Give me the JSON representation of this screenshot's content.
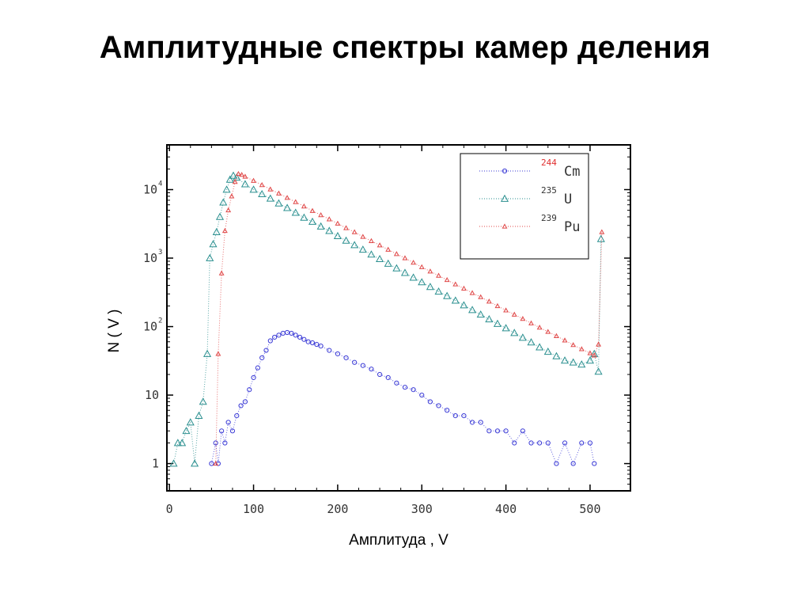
{
  "title": "Амплитудные спектры камер деления",
  "chart_data": {
    "type": "scatter",
    "title": "Амплитудные спектры камер деления",
    "xlabel": "Амплитуда  , V",
    "ylabel": "N ( V )",
    "xlim": [
      -3,
      548
    ],
    "ylim": [
      0.4,
      45000
    ],
    "yscale": "log",
    "grid": false,
    "legend_position": "top-right",
    "x_ticks": [
      0,
      100,
      200,
      300,
      400,
      500
    ],
    "x_tick_labels": [
      "0",
      "100",
      "200",
      "300",
      "400",
      "500"
    ],
    "y_ticks": [
      {
        "value": 1,
        "base": "1",
        "exp": ""
      },
      {
        "value": 10,
        "base": "10",
        "exp": ""
      },
      {
        "value": 100,
        "base": "10",
        "exp": "2"
      },
      {
        "value": 1000,
        "base": "10",
        "exp": "3"
      },
      {
        "value": 10000,
        "base": "10",
        "exp": "4"
      }
    ],
    "series": [
      {
        "name": "Cm",
        "isotope_mass": "244",
        "marker": "circle",
        "color": "#3b3bd6",
        "label_color": "#e03030",
        "line": "dotted",
        "x": [
          50,
          55,
          58,
          62,
          66,
          70,
          75,
          80,
          85,
          90,
          95,
          100,
          105,
          110,
          115,
          120,
          125,
          130,
          135,
          140,
          145,
          150,
          155,
          160,
          165,
          170,
          175,
          180,
          190,
          200,
          210,
          220,
          230,
          240,
          250,
          260,
          270,
          280,
          290,
          300,
          310,
          320,
          330,
          340,
          350,
          360,
          370,
          380,
          390,
          400,
          410,
          420,
          430,
          440,
          450,
          460,
          470,
          480,
          490,
          500,
          505
        ],
        "y": [
          1,
          2,
          1,
          3,
          2,
          4,
          3,
          5,
          7,
          8,
          12,
          18,
          25,
          35,
          45,
          62,
          70,
          75,
          80,
          82,
          80,
          75,
          70,
          65,
          60,
          58,
          55,
          52,
          45,
          40,
          35,
          30,
          27,
          24,
          20,
          18,
          15,
          13,
          12,
          10,
          8,
          7,
          6,
          5,
          5,
          4,
          4,
          3,
          3,
          3,
          2,
          3,
          2,
          2,
          2,
          1,
          2,
          1,
          2,
          2,
          1
        ]
      },
      {
        "name": "U",
        "isotope_mass": "235",
        "marker": "triangle",
        "color": "#2a8f8f",
        "label_color": "#333333",
        "line": "dotted",
        "x": [
          5,
          10,
          15,
          20,
          25,
          30,
          35,
          40,
          45,
          48,
          52,
          56,
          60,
          64,
          68,
          72,
          76,
          80,
          90,
          100,
          110,
          120,
          130,
          140,
          150,
          160,
          170,
          180,
          190,
          200,
          210,
          220,
          230,
          240,
          250,
          260,
          270,
          280,
          290,
          300,
          310,
          320,
          330,
          340,
          350,
          360,
          370,
          380,
          390,
          400,
          410,
          420,
          430,
          440,
          450,
          460,
          470,
          480,
          490,
          500,
          505,
          510,
          513
        ],
        "y": [
          1,
          2,
          2,
          3,
          4,
          1,
          5,
          8,
          40,
          1000,
          1600,
          2400,
          4000,
          6500,
          10000,
          14000,
          16000,
          15000,
          12000,
          10000,
          8600,
          7400,
          6300,
          5400,
          4600,
          3900,
          3400,
          2900,
          2500,
          2100,
          1800,
          1550,
          1330,
          1130,
          970,
          830,
          710,
          610,
          520,
          445,
          380,
          325,
          280,
          240,
          205,
          175,
          150,
          128,
          110,
          95,
          81,
          69,
          59,
          50,
          43,
          37,
          32,
          30,
          28,
          32,
          40,
          22,
          1900
        ]
      },
      {
        "name": "Pu",
        "isotope_mass": "239",
        "marker": "small-triangle",
        "color": "#e04848",
        "label_color": "#333333",
        "line": "dotted",
        "x": [
          55,
          58,
          62,
          66,
          70,
          74,
          78,
          82,
          86,
          90,
          100,
          110,
          120,
          130,
          140,
          150,
          160,
          170,
          180,
          190,
          200,
          210,
          220,
          230,
          240,
          250,
          260,
          270,
          280,
          290,
          300,
          310,
          320,
          330,
          340,
          350,
          360,
          370,
          380,
          390,
          400,
          410,
          420,
          430,
          440,
          450,
          460,
          470,
          480,
          490,
          500,
          505,
          510,
          514
        ],
        "y": [
          1,
          40,
          600,
          2500,
          5000,
          8000,
          13000,
          17000,
          16500,
          15500,
          13500,
          11700,
          10100,
          8800,
          7600,
          6600,
          5700,
          4900,
          4250,
          3700,
          3200,
          2750,
          2400,
          2050,
          1780,
          1540,
          1330,
          1150,
          1000,
          860,
          740,
          640,
          555,
          480,
          415,
          360,
          310,
          270,
          233,
          200,
          173,
          150,
          130,
          112,
          97,
          84,
          73,
          63,
          54,
          47,
          41,
          38,
          55,
          2400
        ]
      }
    ]
  }
}
